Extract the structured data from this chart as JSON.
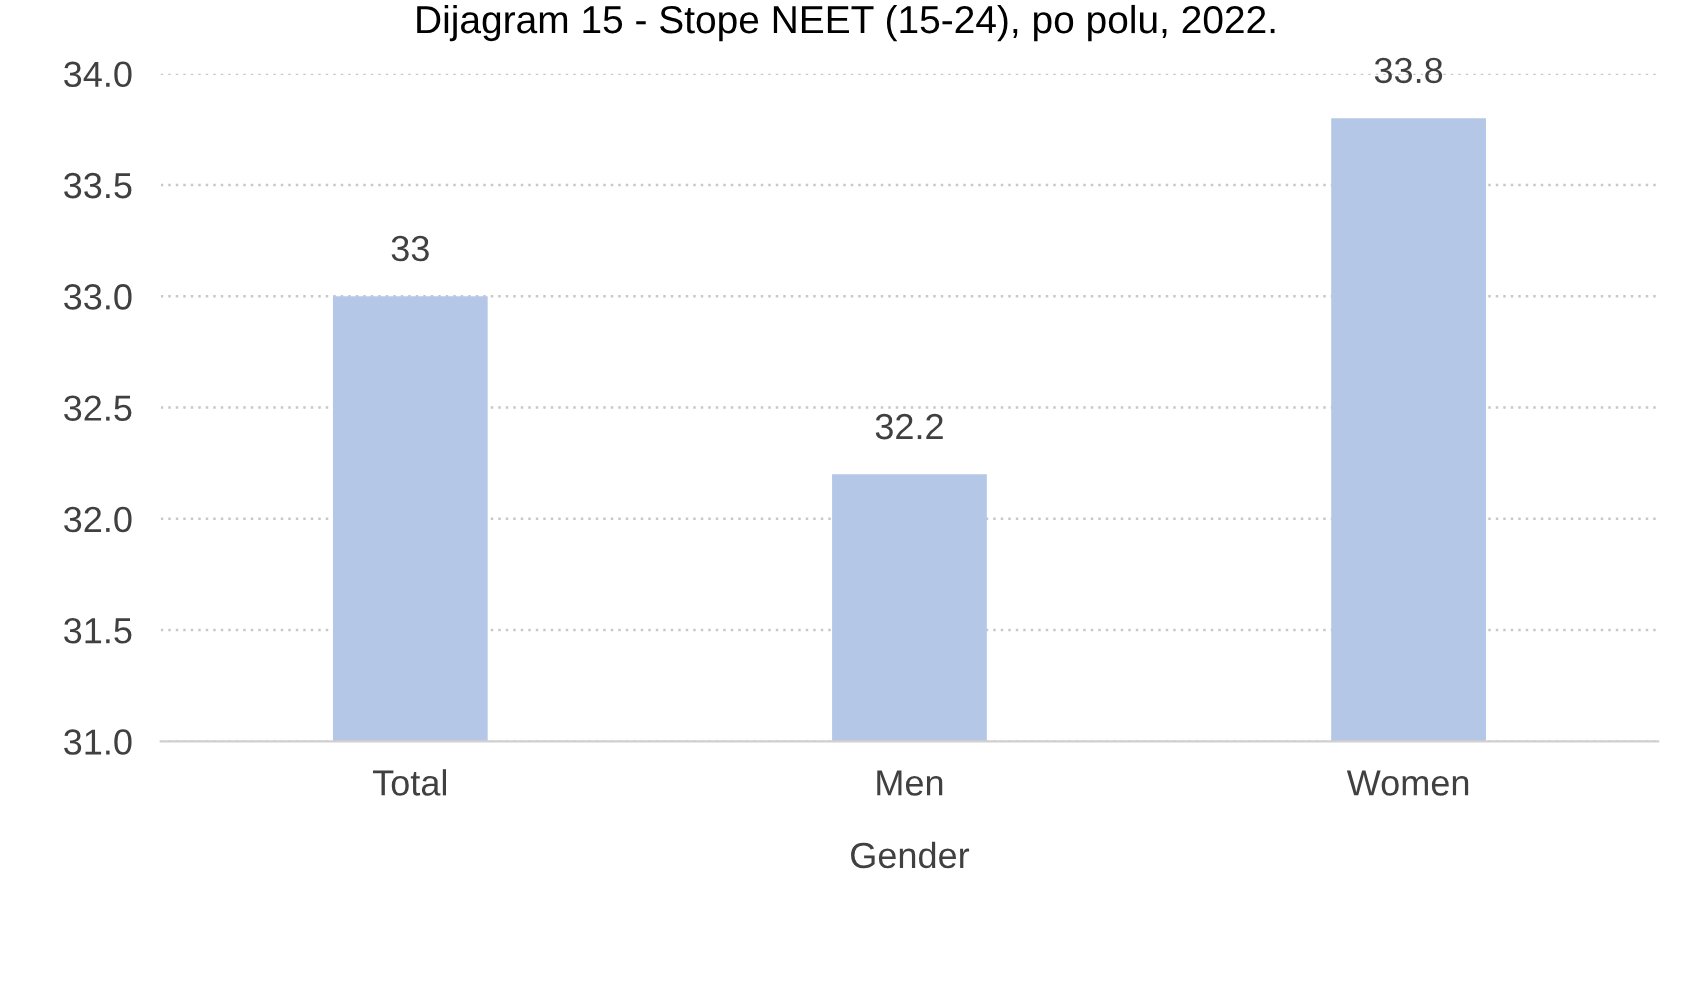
{
  "chart_data": {
    "type": "bar",
    "title": "Dijagram 15 - Stope NEET (15-24), po polu, 2022.",
    "xlabel": "Gender",
    "categories": [
      "Total",
      "Men",
      "Women"
    ],
    "values": [
      33,
      32.2,
      33.8
    ],
    "color": "#b4c7e7",
    "ylim": [
      31,
      34
    ],
    "yticks": [
      {
        "value": 31,
        "label": "31.0"
      },
      {
        "value": 31.5,
        "label": "31.5"
      },
      {
        "value": 32,
        "label": "32.0"
      },
      {
        "value": 32.5,
        "label": "32.5"
      },
      {
        "value": 33,
        "label": "33.0"
      },
      {
        "value": 33.5,
        "label": "33.5"
      },
      {
        "value": 34,
        "label": "34.0"
      }
    ],
    "grid": "y",
    "data_labels": true,
    "legend": false
  }
}
